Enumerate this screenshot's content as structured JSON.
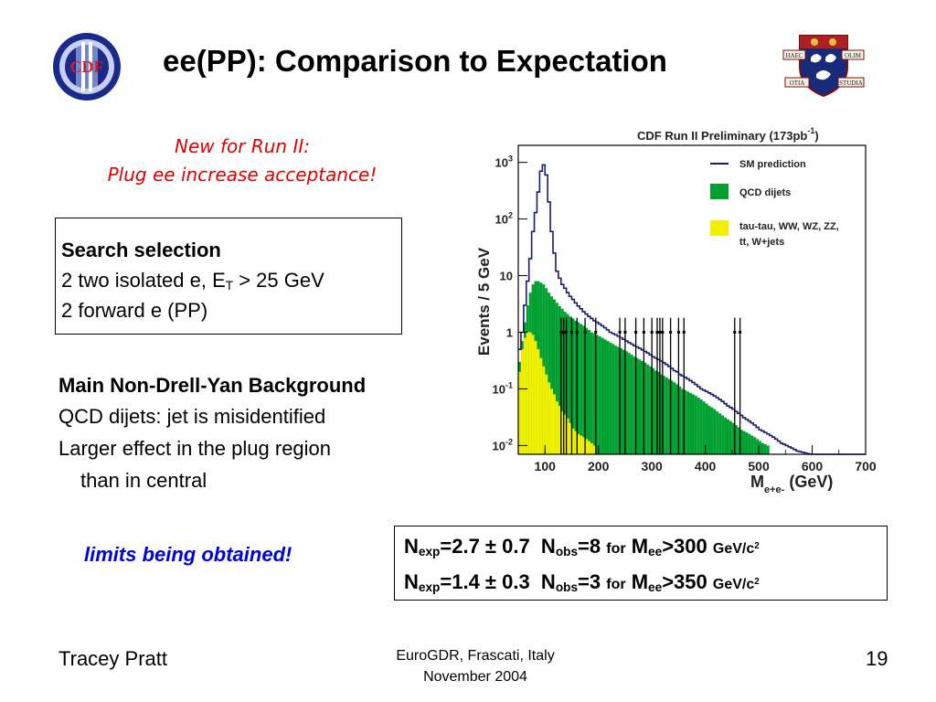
{
  "slide": {
    "title": "ee(PP): Comparison to Expectation",
    "subtitle_line1": "New for Run II:",
    "subtitle_line2": "Plug ee increase acceptance!",
    "search": {
      "heading": "Search selection",
      "line1_pre": "2 two isolated e, E",
      "line1_sub": "T",
      "line1_post": " > 25 GeV",
      "line2": "2 forward e (PP)"
    },
    "background": {
      "heading": "Main Non-Drell-Yan Background",
      "line1": "QCD dijets: jet is misidentified",
      "line2": "Larger effect in the plug region",
      "line3": "than in central"
    },
    "limits_note": "limits being obtained!",
    "results": [
      {
        "n": "N",
        "exp_sub": "exp",
        "exp_val": "=2.7 ± 0.7",
        "n2": "N",
        "obs_sub": "obs",
        "obs_val": "=8",
        "for": "for",
        "m": "M",
        "m_sub": "ee",
        "cut": ">300",
        "unit": "GeV/c",
        "unit_sup": "2"
      },
      {
        "n": "N",
        "exp_sub": "exp",
        "exp_val": "=1.4 ± 0.3",
        "n2": "N",
        "obs_sub": "obs",
        "obs_val": "=3",
        "for": "for",
        "m": "M",
        "m_sub": "ee",
        "cut": ">350",
        "unit": "GeV/c",
        "unit_sup": "2"
      }
    ],
    "footer": {
      "author": "Tracey Pratt",
      "venue_line1": "EuroGDR, Frascati, Italy",
      "venue_line2": "November 2004",
      "page": "19"
    },
    "logos": {
      "left": {
        "text": "CDF",
        "icon": "cdf-logo-icon",
        "ring_color": "#1a2a8a"
      },
      "right": {
        "banner_left": "HAEC",
        "banner_right": "OLIM",
        "banner_bottom_left": "OTIA",
        "banner_bottom_right": "STUDIA",
        "icon": "university-crest-icon"
      }
    }
  },
  "chart_data": {
    "type": "histogram",
    "title": "CDF Run II Preliminary (173pb",
    "title_sup": "-1",
    "title_end": ")",
    "xlabel": "M",
    "xlabel_sub": "e+e-",
    "xlabel_unit": " (GeV)",
    "ylabel": "Events / 5 GeV",
    "y_log": true,
    "xlim": [
      50,
      700
    ],
    "ylim": [
      0.007,
      2000
    ],
    "xticks": [
      100,
      200,
      300,
      400,
      500,
      600,
      700
    ],
    "yticks": [
      {
        "value": 0.01,
        "base": "10",
        "exp": "-2"
      },
      {
        "value": 0.1,
        "base": "10",
        "exp": "-1"
      },
      {
        "value": 1,
        "base": "1",
        "exp": ""
      },
      {
        "value": 10,
        "base": "10",
        "exp": ""
      },
      {
        "value": 100,
        "base": "10",
        "exp": "2"
      },
      {
        "value": 1000,
        "base": "10",
        "exp": "3"
      }
    ],
    "legend": {
      "placement": "top-right",
      "entries": [
        {
          "label": "SM prediction",
          "kind": "line",
          "color": "#1a1a6e"
        },
        {
          "label": "QCD dijets",
          "kind": "box",
          "color": "#00a030"
        },
        {
          "label": "tau-tau, WW, WZ, ZZ,",
          "label2": "tt, W+jets",
          "kind": "box",
          "color": "#f0f000"
        }
      ]
    },
    "series": [
      {
        "name": "SM prediction",
        "color": "#1a1a6e",
        "bin_width": 5,
        "bin_start": 50,
        "values": [
          0.5,
          1,
          3,
          8,
          20,
          60,
          130,
          300,
          700,
          900,
          600,
          200,
          60,
          25,
          12,
          9,
          7,
          6,
          5,
          4.3,
          3.8,
          3.3,
          2.9,
          2.6,
          2.3,
          2.1,
          1.9,
          1.75,
          1.6,
          1.5,
          1.4,
          1.3,
          1.2,
          1.1,
          1.0,
          0.95,
          0.9,
          0.85,
          0.8,
          0.75,
          0.7,
          0.66,
          0.62,
          0.58,
          0.55,
          0.52,
          0.49,
          0.46,
          0.43,
          0.4,
          0.37,
          0.35,
          0.33,
          0.31,
          0.29,
          0.27,
          0.25,
          0.23,
          0.21,
          0.2,
          0.18,
          0.17,
          0.16,
          0.15,
          0.14,
          0.13,
          0.12,
          0.11,
          0.1,
          0.095,
          0.09,
          0.085,
          0.08,
          0.075,
          0.07,
          0.065,
          0.06,
          0.055,
          0.05,
          0.047,
          0.044,
          0.04,
          0.037,
          0.034,
          0.031,
          0.029,
          0.027,
          0.025,
          0.023,
          0.021,
          0.019,
          0.018,
          0.017,
          0.016,
          0.015,
          0.014,
          0.013,
          0.012,
          0.011,
          0.0105,
          0.01,
          0.0095,
          0.009,
          0.0085,
          0.008,
          0.0078,
          0.0076,
          0.0074,
          0.0072,
          0.007,
          0.007,
          0.007,
          0.007,
          0.007,
          0.007,
          0.007,
          0.007,
          0.007,
          0.007,
          0.007,
          0.007,
          0.007,
          0.007,
          0.007,
          0.007,
          0.007,
          0.007,
          0.007,
          0.007,
          0.007
        ]
      },
      {
        "name": "QCD dijets",
        "color": "#00a030",
        "bin_width": 5,
        "bin_start": 50,
        "values": [
          0.3,
          0.7,
          1.5,
          3,
          5,
          7,
          8,
          8,
          7.5,
          7,
          6,
          5,
          4.3,
          3.8,
          3.3,
          2.9,
          2.6,
          2.3,
          2.1,
          1.9,
          1.75,
          1.6,
          1.5,
          1.4,
          1.3,
          1.2,
          1.1,
          1.0,
          0.95,
          0.9,
          0.85,
          0.8,
          0.75,
          0.7,
          0.66,
          0.62,
          0.58,
          0.55,
          0.52,
          0.49,
          0.46,
          0.43,
          0.4,
          0.37,
          0.35,
          0.33,
          0.31,
          0.29,
          0.27,
          0.25,
          0.23,
          0.21,
          0.2,
          0.18,
          0.17,
          0.16,
          0.15,
          0.14,
          0.13,
          0.12,
          0.11,
          0.1,
          0.095,
          0.09,
          0.085,
          0.08,
          0.075,
          0.07,
          0.065,
          0.06,
          0.055,
          0.05,
          0.047,
          0.044,
          0.04,
          0.037,
          0.034,
          0.031,
          0.029,
          0.027,
          0.025,
          0.023,
          0.021,
          0.019,
          0.018,
          0.017,
          0.016,
          0.015,
          0.014,
          0.013,
          0.012,
          0.011,
          0.0105,
          0.01
        ]
      },
      {
        "name": "tau-tau, WW, WZ, ZZ, tt, W+jets",
        "color": "#f0f000",
        "bin_width": 5,
        "bin_start": 50,
        "values": [
          0.2,
          0.5,
          0.8,
          1.0,
          1.0,
          0.9,
          0.7,
          0.5,
          0.35,
          0.25,
          0.18,
          0.13,
          0.1,
          0.08,
          0.06,
          0.05,
          0.04,
          0.035,
          0.03,
          0.025,
          0.02,
          0.018,
          0.016,
          0.015,
          0.014,
          0.013,
          0.012,
          0.011,
          0.01
        ]
      }
    ],
    "data_x": [
      130,
      135,
      140,
      150,
      160,
      175,
      195,
      240,
      250,
      270,
      285,
      300,
      310,
      315,
      320,
      335,
      350,
      360,
      455,
      465
    ],
    "data_label": "Data"
  }
}
